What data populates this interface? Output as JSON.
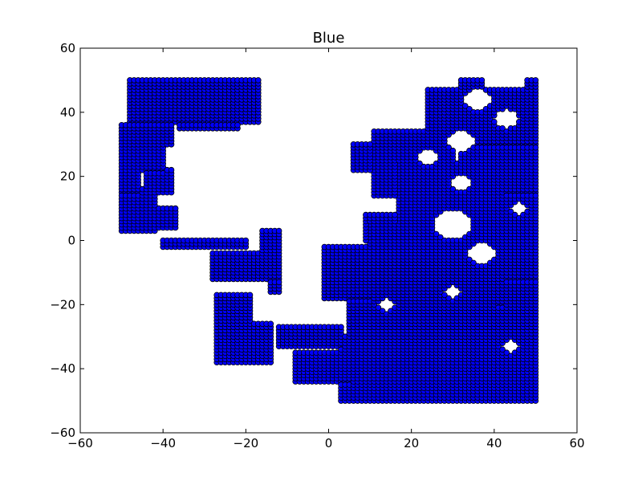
{
  "chart_data": {
    "type": "scatter",
    "title": "Blue",
    "xlabel": "",
    "ylabel": "",
    "xlim": [
      -60,
      60
    ],
    "ylim": [
      -60,
      60
    ],
    "xticks": [
      -60,
      -40,
      -20,
      0,
      20,
      40,
      60
    ],
    "yticks": [
      -60,
      -40,
      -20,
      0,
      20,
      40,
      60
    ],
    "xtick_labels": [
      "−60",
      "−40",
      "−20",
      "0",
      "20",
      "40",
      "60"
    ],
    "ytick_labels": [
      "−60",
      "−40",
      "−20",
      "0",
      "20",
      "40",
      "60"
    ],
    "grid": false,
    "legend": "none",
    "marker": "circle",
    "marker_color": "#0000ff",
    "marker_edge_color": "#000000",
    "lattice_step": 1,
    "points_note": "",
    "regions": [
      {
        "x": [
          -48,
          -17
        ],
        "y": [
          37,
          50
        ]
      },
      {
        "x": [
          -36,
          -22
        ],
        "y": [
          35,
          44
        ]
      },
      {
        "x": [
          -50,
          -46
        ],
        "y": [
          15,
          36
        ]
      },
      {
        "x": [
          -47,
          -40
        ],
        "y": [
          22,
          37
        ]
      },
      {
        "x": [
          -44,
          -38
        ],
        "y": [
          30,
          40
        ]
      },
      {
        "x": [
          -50,
          -42
        ],
        "y": [
          3,
          16
        ]
      },
      {
        "x": [
          -45,
          -37
        ],
        "y": [
          4,
          10
        ]
      },
      {
        "x": [
          -44,
          -38
        ],
        "y": [
          15,
          22
        ]
      },
      {
        "x": [
          -40,
          -20
        ],
        "y": [
          -2,
          0
        ]
      },
      {
        "x": [
          -28,
          -12
        ],
        "y": [
          -12,
          -4
        ]
      },
      {
        "x": [
          -16,
          -12
        ],
        "y": [
          -4,
          3
        ]
      },
      {
        "x": [
          -14,
          -12
        ],
        "y": [
          -16,
          -8
        ]
      },
      {
        "x": [
          -27,
          -19
        ],
        "y": [
          -38,
          -17
        ]
      },
      {
        "x": [
          -20,
          -14
        ],
        "y": [
          -38,
          -26
        ]
      },
      {
        "x": [
          -12,
          3
        ],
        "y": [
          -33,
          -27
        ]
      },
      {
        "x": [
          -8,
          5
        ],
        "y": [
          -44,
          -35
        ]
      },
      {
        "x": [
          -1,
          10
        ],
        "y": [
          -18,
          -2
        ]
      },
      {
        "x": [
          3,
          50
        ],
        "y": [
          -50,
          -30
        ]
      },
      {
        "x": [
          5,
          18
        ],
        "y": [
          -30,
          -8
        ]
      },
      {
        "x": [
          10,
          40
        ],
        "y": [
          -30,
          5
        ]
      },
      {
        "x": [
          17,
          42
        ],
        "y": [
          -20,
          24
        ]
      },
      {
        "x": [
          9,
          28
        ],
        "y": [
          0,
          8
        ]
      },
      {
        "x": [
          11,
          30
        ],
        "y": [
          14,
          34
        ]
      },
      {
        "x": [
          6,
          13
        ],
        "y": [
          22,
          30
        ]
      },
      {
        "x": [
          24,
          50
        ],
        "y": [
          30,
          47
        ]
      },
      {
        "x": [
          32,
          50
        ],
        "y": [
          15,
          32
        ]
      },
      {
        "x": [
          36,
          50
        ],
        "y": [
          -12,
          15
        ]
      },
      {
        "x": [
          38,
          50
        ],
        "y": [
          -30,
          -12
        ]
      },
      {
        "x": [
          32,
          37
        ],
        "y": [
          47,
          50
        ]
      },
      {
        "x": [
          48,
          50
        ],
        "y": [
          44,
          50
        ]
      },
      {
        "x": [
          40,
          50
        ],
        "y": [
          -50,
          -44
        ]
      }
    ],
    "holes": [
      {
        "cx": 36,
        "cy": 44,
        "r": 3.5
      },
      {
        "cx": 32,
        "cy": 31,
        "r": 3.5
      },
      {
        "cx": 24,
        "cy": 26,
        "r": 2.5
      },
      {
        "cx": 30,
        "cy": 5,
        "r": 4.5
      },
      {
        "cx": 37,
        "cy": -4,
        "r": 3.5
      },
      {
        "cx": 43,
        "cy": 38,
        "r": 3
      },
      {
        "cx": 32,
        "cy": 18,
        "r": 2.5
      },
      {
        "cx": 14,
        "cy": -20,
        "r": 2
      },
      {
        "cx": 44,
        "cy": -33,
        "r": 2
      },
      {
        "cx": 30,
        "cy": -16,
        "r": 2
      },
      {
        "cx": 46,
        "cy": 10,
        "r": 2
      }
    ]
  }
}
